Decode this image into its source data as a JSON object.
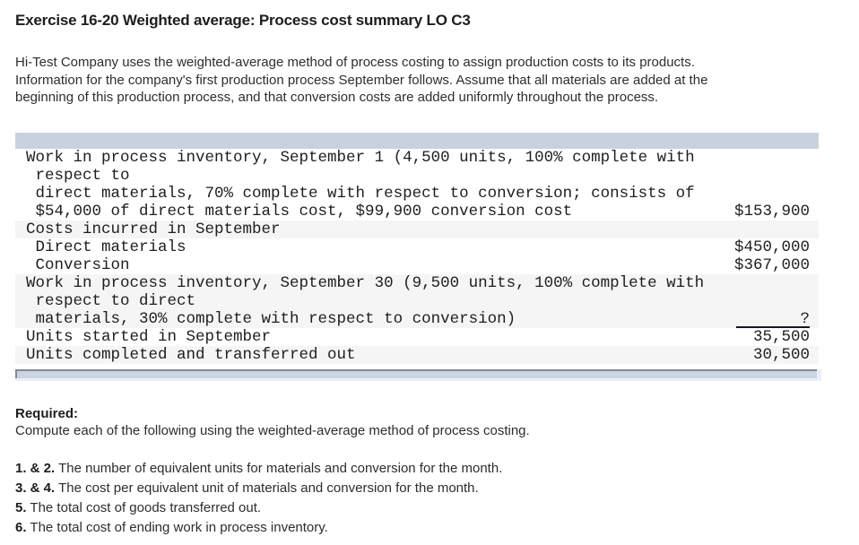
{
  "page": {
    "title": "Exercise 16-20 Weighted average: Process cost summary LO C3",
    "intro_lines": [
      "Hi-Test Company uses the weighted-average method of process costing to assign production costs to its products.",
      "Information for the company's first production process September follows. Assume that all materials are added at the",
      "beginning of this production process, and that conversion costs are added uniformly throughout the process."
    ]
  },
  "table": {
    "rows": [
      {
        "text": "Work in process inventory, September 1 (4,500 units, 100% complete with",
        "value": ""
      },
      {
        "text": " respect to",
        "value": ""
      },
      {
        "text": " direct materials, 70% complete with respect to conversion; consists of",
        "value": ""
      },
      {
        "text": " $54,000 of direct materials cost, $99,900 conversion cost",
        "value": "$153,900"
      },
      {
        "text": "Costs incurred in September",
        "value": ""
      },
      {
        "text": " Direct materials",
        "value": "$450,000"
      },
      {
        "text": " Conversion",
        "value": "$367,000"
      },
      {
        "text": "Work in process inventory, September 30 (9,500 units, 100% complete with",
        "value": ""
      },
      {
        "text": " respect to direct",
        "value": ""
      },
      {
        "text": " materials, 30% complete with respect to conversion)",
        "value": "?"
      },
      {
        "text": "Units started in September",
        "value": "35,500"
      },
      {
        "text": "Units completed and transferred out",
        "value": "30,500"
      }
    ]
  },
  "required": {
    "heading": "Required:",
    "instruction": "Compute each of the following using the weighted-average method of process costing.",
    "items": [
      {
        "label": "1. & 2.",
        "text": "The number of equivalent units for materials and conversion for the month."
      },
      {
        "label": "3. & 4.",
        "text": "The cost per equivalent unit of materials and conversion for the month."
      },
      {
        "label": "5.",
        "text": "The total cost of goods transferred out."
      },
      {
        "label": "6.",
        "text": "The total cost of ending work in process inventory."
      }
    ]
  },
  "colors": {
    "table_header_bar": "#c8d2df",
    "row_stripe": "#f5f5f5",
    "scrollbar_thumb": "#cbd4e2",
    "scrollbar_border": "#85898f",
    "text": "#2d2d2d"
  }
}
